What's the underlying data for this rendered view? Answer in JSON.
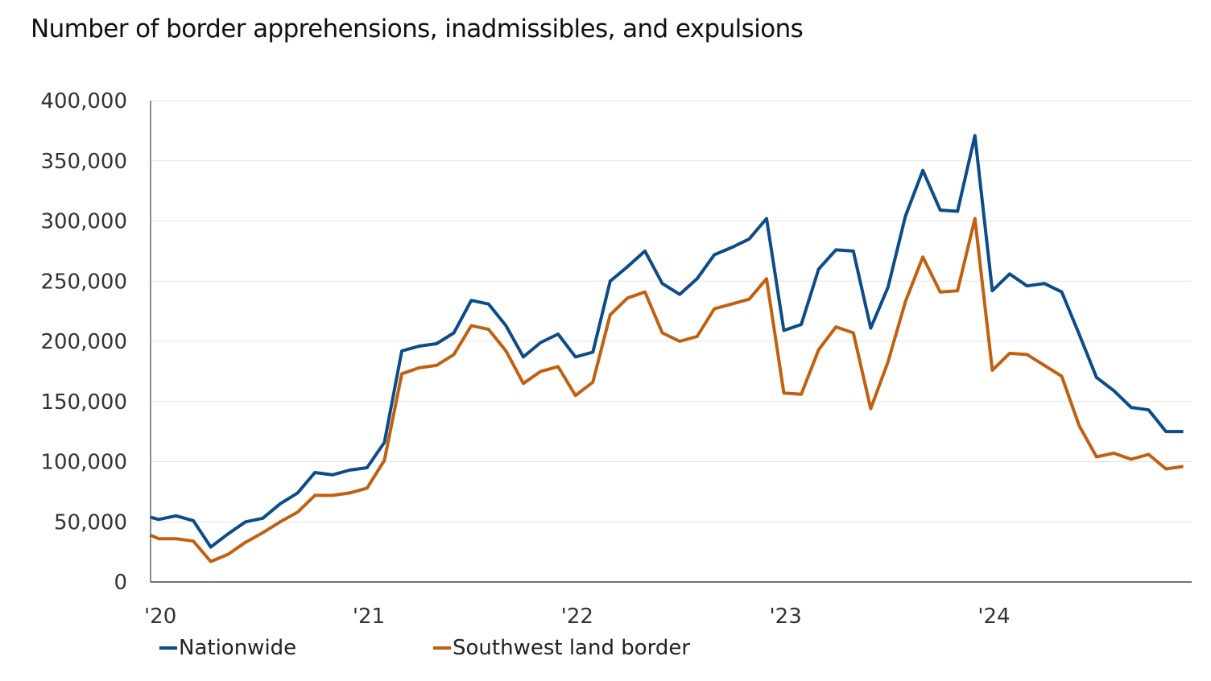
{
  "chart_data": {
    "type": "line",
    "title": "Number of border apprehensions, inadmissibles, and expulsions",
    "xlabel": "",
    "ylabel": "",
    "ylim": [
      0,
      400000
    ],
    "yticks": [
      0,
      50000,
      100000,
      150000,
      200000,
      250000,
      300000,
      350000,
      400000
    ],
    "ytick_labels": [
      "0",
      "50,000",
      "100,000",
      "150,000",
      "200,000",
      "250,000",
      "300,000",
      "350,000",
      "400,000"
    ],
    "xticks": [
      0,
      12,
      24,
      36,
      48
    ],
    "xtick_labels": [
      "'20",
      "'21",
      "'22",
      "'23",
      "'24"
    ],
    "x_unit": "months since Jan 2020",
    "grid": "horizontal",
    "legend_position": "bottom-left",
    "x": [
      -0.5,
      0,
      1,
      2,
      3,
      4,
      5,
      6,
      7,
      8,
      9,
      10,
      11,
      12,
      13,
      14,
      15,
      16,
      17,
      18,
      19,
      20,
      21,
      22,
      23,
      24,
      25,
      26,
      27,
      28,
      29,
      30,
      31,
      32,
      33,
      34,
      35,
      36,
      37,
      38,
      39,
      40,
      41,
      42,
      43,
      44,
      45,
      46,
      47,
      48,
      49,
      50,
      51,
      52,
      53,
      54,
      55,
      56,
      57,
      58,
      59
    ],
    "series": [
      {
        "name": "Nationwide",
        "color": "#0b4c89",
        "values": [
          54000,
          52000,
          55000,
          51000,
          29000,
          40000,
          50000,
          53000,
          65000,
          74000,
          91000,
          89000,
          93000,
          95000,
          116000,
          192000,
          196000,
          198000,
          207000,
          234000,
          231000,
          213000,
          187000,
          199000,
          206000,
          187000,
          191000,
          250000,
          262000,
          275000,
          248000,
          239000,
          252000,
          272000,
          278000,
          285000,
          302000,
          209000,
          214000,
          260000,
          276000,
          275000,
          211000,
          245000,
          304000,
          342000,
          309000,
          308000,
          371000,
          242000,
          256000,
          246000,
          248000,
          241000,
          206000,
          170000,
          159000,
          145000,
          143000,
          125000,
          125000
        ]
      },
      {
        "name": "Southwest land border",
        "color": "#c1600e",
        "values": [
          39000,
          36000,
          36000,
          34000,
          17000,
          23000,
          33000,
          41000,
          50000,
          58000,
          72000,
          72000,
          74000,
          78000,
          101000,
          173000,
          178000,
          180000,
          189000,
          213000,
          210000,
          192000,
          165000,
          175000,
          179000,
          155000,
          166000,
          222000,
          236000,
          241000,
          207000,
          200000,
          204000,
          227000,
          231000,
          235000,
          252000,
          157000,
          156000,
          193000,
          212000,
          207000,
          144000,
          183000,
          233000,
          270000,
          241000,
          242000,
          302000,
          176000,
          190000,
          189000,
          180000,
          171000,
          130000,
          104000,
          107000,
          102000,
          106000,
          94000,
          96000
        ]
      }
    ]
  }
}
